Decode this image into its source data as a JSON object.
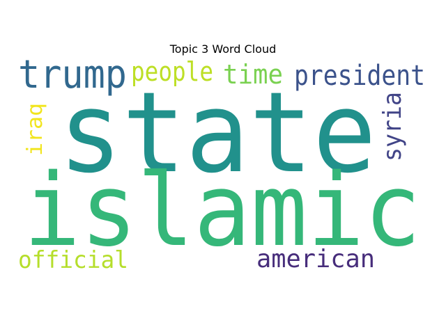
{
  "chart_data": {
    "type": "word-cloud",
    "title": "Topic 3 Word Cloud",
    "words": [
      {
        "text": "state",
        "weight": 1.0,
        "color": "#21918c"
      },
      {
        "text": "islamic",
        "weight": 0.92,
        "color": "#35b779"
      },
      {
        "text": "trump",
        "weight": 0.4,
        "color": "#31688e"
      },
      {
        "text": "president",
        "weight": 0.34,
        "color": "#3b528b"
      },
      {
        "text": "people",
        "weight": 0.28,
        "color": "#bddf26"
      },
      {
        "text": "time",
        "weight": 0.28,
        "color": "#7ad151"
      },
      {
        "text": "syria",
        "weight": 0.28,
        "color": "#414487"
      },
      {
        "text": "american",
        "weight": 0.28,
        "color": "#472d7b"
      },
      {
        "text": "official",
        "weight": 0.25,
        "color": "#b5de2b"
      },
      {
        "text": "iraq",
        "weight": 0.2,
        "color": "#f1e51d"
      }
    ],
    "background": "#ffffff"
  }
}
